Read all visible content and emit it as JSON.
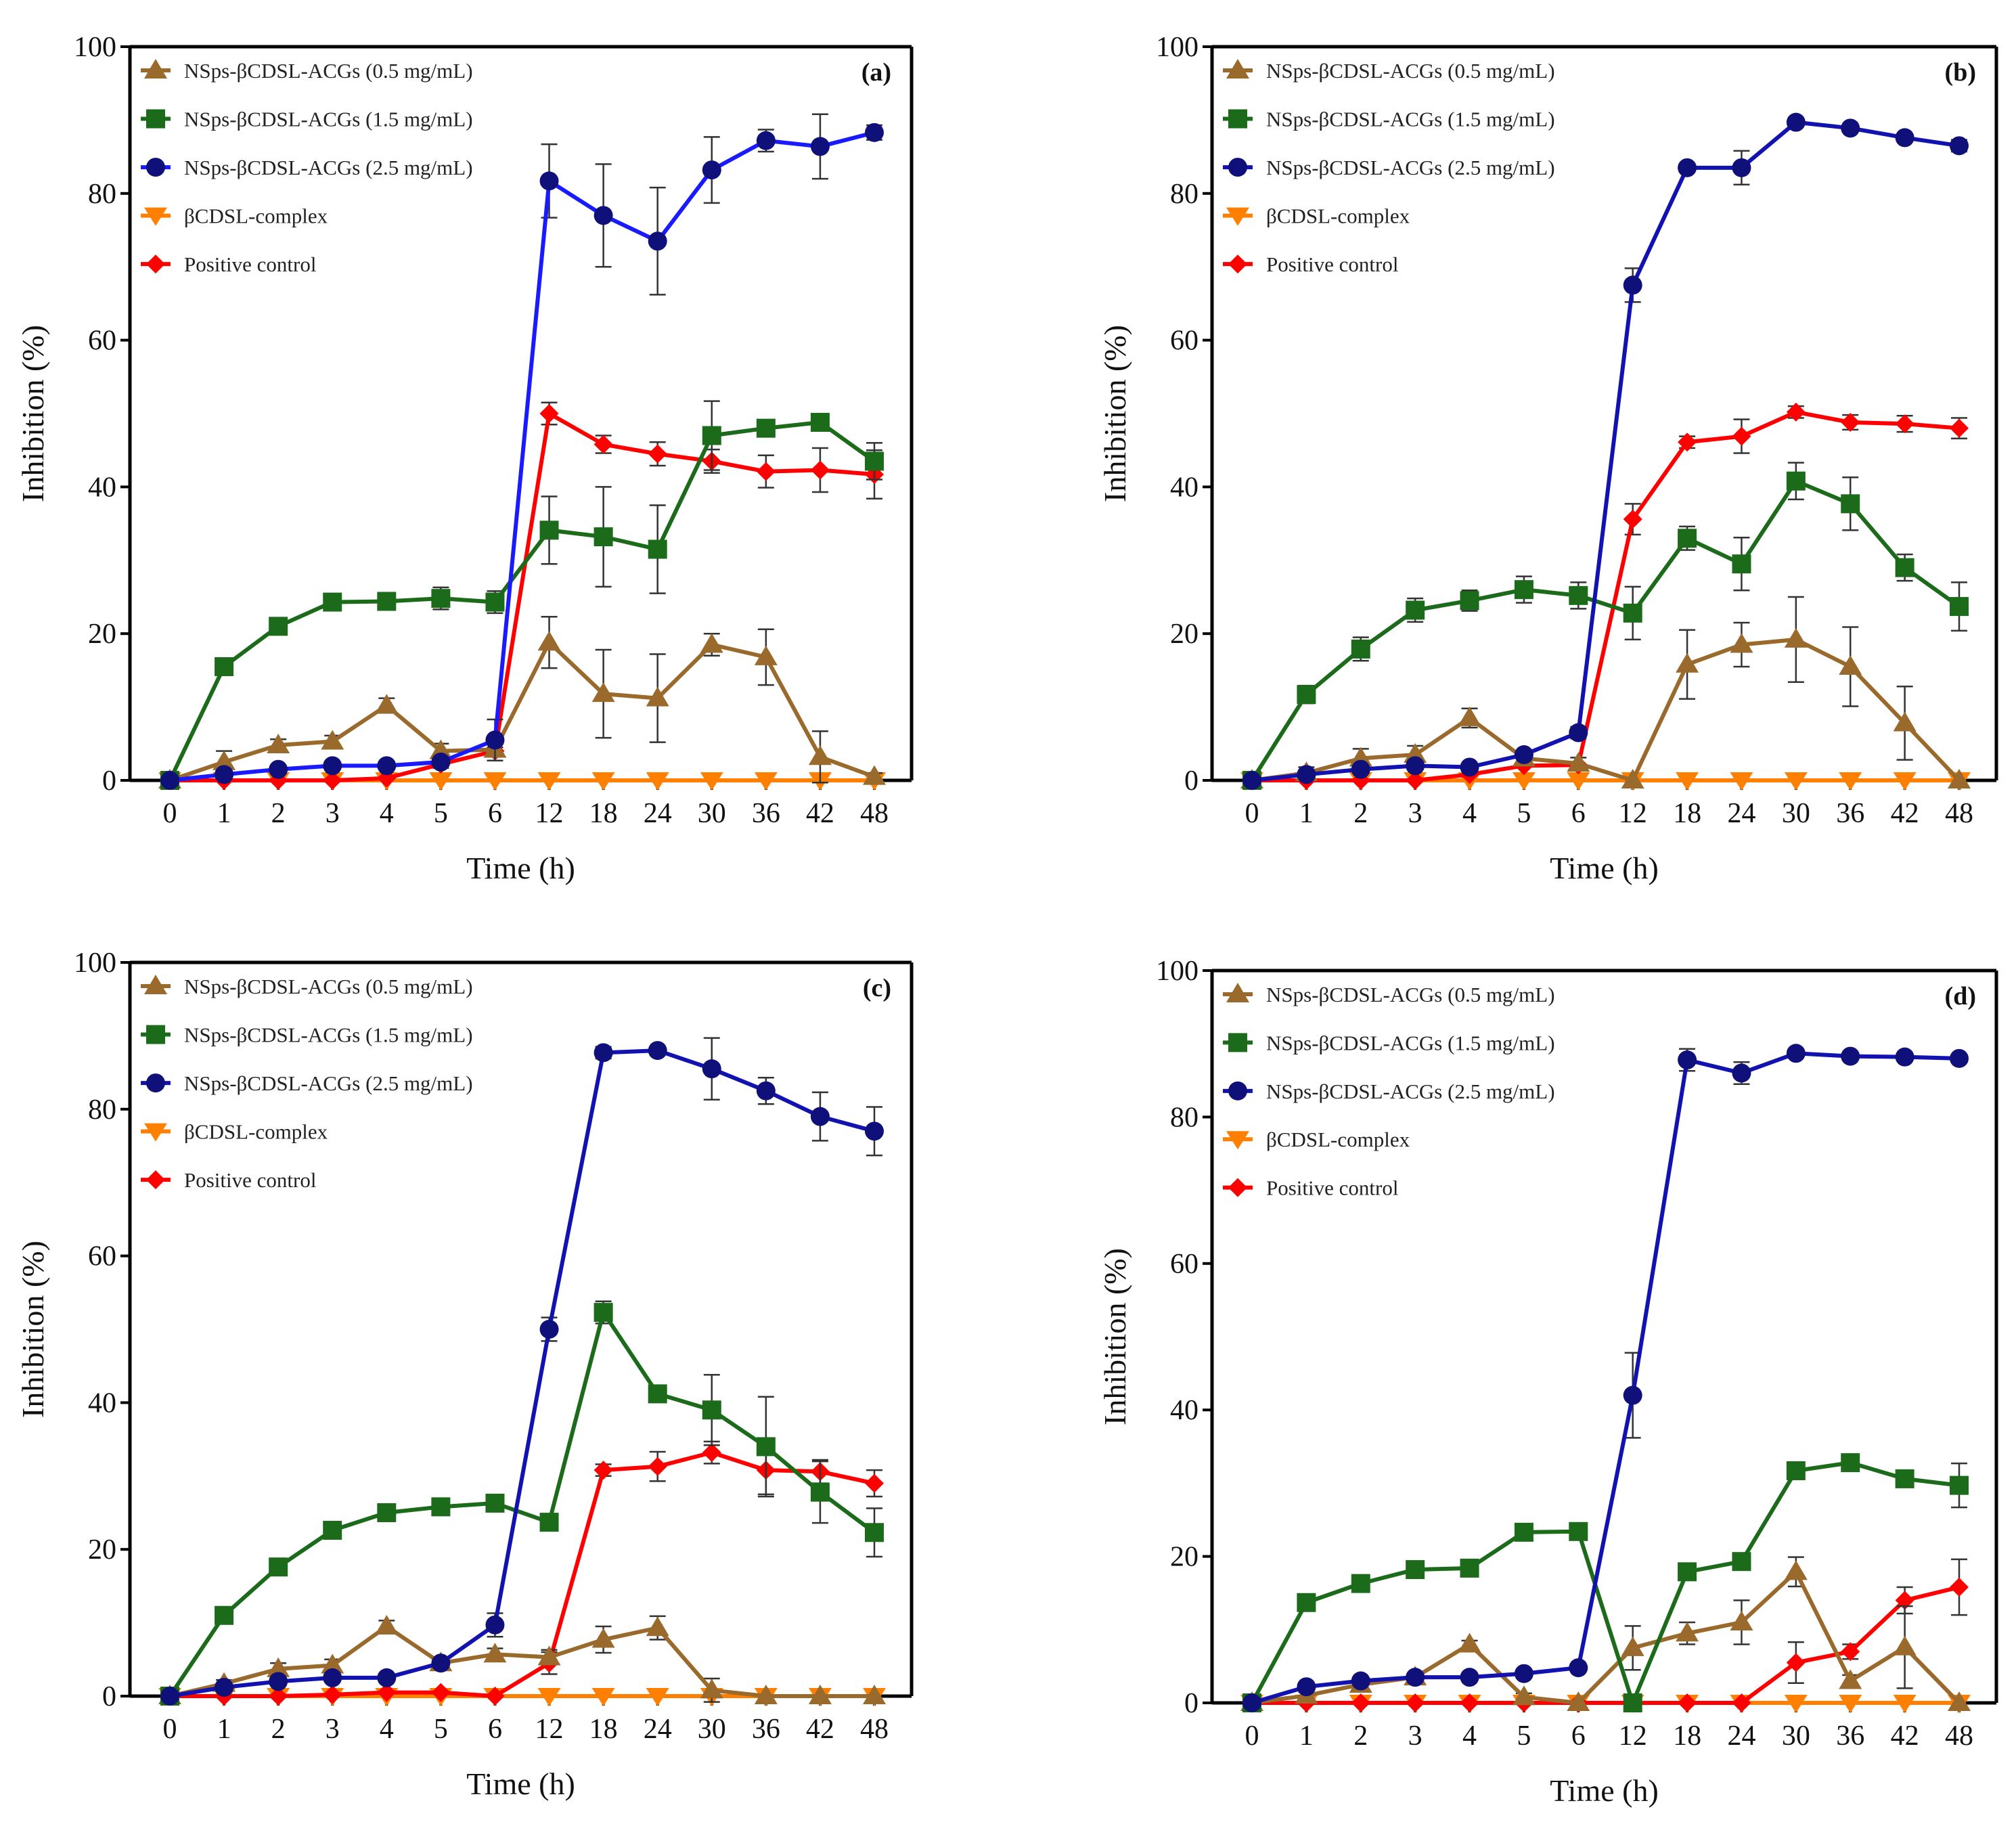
{
  "chart_data": [
    {
      "type": "line",
      "panel_label": "(a)",
      "xlabel": "Time (h)",
      "ylabel": "Inhibition (%)",
      "categories": [
        "0",
        "1",
        "2",
        "3",
        "4",
        "5",
        "6",
        "12",
        "18",
        "24",
        "30",
        "36",
        "42",
        "48"
      ],
      "ylim": [
        0,
        100
      ],
      "yticks": [
        0,
        20,
        40,
        60,
        80,
        100
      ],
      "legend_position": "top-left",
      "series": [
        {
          "name": "NSps-βCDSL-ACGs (0.5 mg/mL)",
          "marker": "triangle-up",
          "color": "#9a6a2c",
          "marker_color": "#9a6a2c",
          "values": [
            0,
            2.5,
            4.8,
            5.3,
            10.2,
            4.0,
            4.2,
            18.8,
            11.8,
            11.2,
            18.5,
            16.8,
            3.2,
            0.5
          ],
          "errors": [
            0,
            1.5,
            0.8,
            0.8,
            1.0,
            1.0,
            1.0,
            3.5,
            6.0,
            6.0,
            1.5,
            3.8,
            3.5,
            0.5
          ]
        },
        {
          "name": "NSps-βCDSL-ACGs (1.5 mg/mL)",
          "marker": "square",
          "color": "#1b6b1b",
          "marker_color": "#1b6b1b",
          "values": [
            0,
            15.5,
            21.0,
            24.3,
            24.4,
            24.8,
            24.3,
            34.1,
            33.2,
            31.5,
            47.0,
            48.0,
            48.8,
            43.5
          ],
          "errors": [
            0,
            0.5,
            0.5,
            0.5,
            0.5,
            1.5,
            1.5,
            4.6,
            6.8,
            6.0,
            4.7,
            0.8,
            0.8,
            2.5
          ]
        },
        {
          "name": "NSps-βCDSL-ACGs (2.5 mg/mL)",
          "marker": "circle",
          "color": "#1a1aff",
          "marker_color": "#10107a",
          "values": [
            0,
            0.8,
            1.5,
            2.0,
            2.0,
            2.5,
            5.5,
            81.7,
            77.0,
            73.5,
            83.2,
            87.2,
            86.4,
            88.3
          ],
          "errors": [
            0,
            0.3,
            0.3,
            0.3,
            0.3,
            0.5,
            2.8,
            5.0,
            7.0,
            7.3,
            4.5,
            1.5,
            4.4,
            1.0
          ]
        },
        {
          "name": "βCDSL-complex",
          "marker": "triangle-down",
          "color": "#ff8000",
          "marker_color": "#ff8000",
          "values": [
            0,
            0,
            0,
            0,
            0,
            0,
            0,
            0,
            0,
            0,
            0,
            0,
            0,
            0
          ],
          "errors": [
            0,
            0,
            0,
            0,
            0,
            0,
            0,
            0,
            0,
            0,
            0,
            0,
            0,
            0
          ]
        },
        {
          "name": "Positive control",
          "marker": "diamond",
          "color": "#ff0000",
          "marker_color": "#ff0000",
          "values": [
            0,
            0,
            0,
            0,
            0.3,
            2.2,
            4.0,
            50.0,
            45.8,
            44.5,
            43.5,
            42.1,
            42.3,
            41.7
          ],
          "errors": [
            0,
            0,
            0,
            0,
            0,
            0.5,
            0.5,
            1.5,
            1.2,
            1.6,
            1.6,
            2.2,
            3.0,
            3.3
          ]
        }
      ]
    },
    {
      "type": "line",
      "panel_label": "(b)",
      "xlabel": "Time (h)",
      "ylabel": "Inhibition (%)",
      "categories": [
        "0",
        "1",
        "2",
        "3",
        "4",
        "5",
        "6",
        "12",
        "18",
        "24",
        "30",
        "36",
        "42",
        "48"
      ],
      "ylim": [
        0,
        100
      ],
      "yticks": [
        0,
        20,
        40,
        60,
        80,
        100
      ],
      "legend_position": "top-left",
      "series": [
        {
          "name": "NSps-βCDSL-ACGs (0.5 mg/mL)",
          "marker": "triangle-up",
          "color": "#9a6a2c",
          "marker_color": "#9a6a2c",
          "values": [
            0,
            1.0,
            3.0,
            3.5,
            8.5,
            3.0,
            2.3,
            0,
            15.8,
            18.5,
            19.2,
            15.5,
            7.8,
            0
          ],
          "errors": [
            0,
            0.8,
            1.3,
            1.2,
            1.3,
            0.5,
            0.8,
            0,
            4.7,
            3.0,
            5.8,
            5.4,
            5.0,
            0
          ]
        },
        {
          "name": "NSps-βCDSL-ACGs (1.5 mg/mL)",
          "marker": "square",
          "color": "#1b6b1b",
          "marker_color": "#1b6b1b",
          "values": [
            0,
            11.7,
            17.9,
            23.2,
            24.5,
            26.0,
            25.2,
            22.8,
            33.0,
            29.5,
            40.8,
            37.7,
            29.0,
            23.7
          ],
          "errors": [
            0,
            1.2,
            1.6,
            1.6,
            1.4,
            1.8,
            1.8,
            3.6,
            1.6,
            3.6,
            2.5,
            3.6,
            1.8,
            3.3
          ]
        },
        {
          "name": "NSps-βCDSL-ACGs (2.5 mg/mL)",
          "marker": "circle",
          "color": "#1212b0",
          "marker_color": "#10107a",
          "values": [
            0,
            0.8,
            1.5,
            2.0,
            1.8,
            3.5,
            6.5,
            67.5,
            83.5,
            83.5,
            89.7,
            88.9,
            87.6,
            86.5
          ],
          "errors": [
            0,
            0.3,
            0.3,
            0.3,
            0.3,
            0.5,
            0.8,
            2.3,
            0.5,
            2.3,
            0.5,
            0.5,
            0.5,
            0.8
          ]
        },
        {
          "name": "βCDSL-complex",
          "marker": "triangle-down",
          "color": "#ff8000",
          "marker_color": "#ff8000",
          "values": [
            0,
            0,
            0,
            0,
            0,
            0,
            0,
            0,
            0,
            0,
            0,
            0,
            0,
            0
          ],
          "errors": [
            0,
            0,
            0,
            0,
            0,
            0,
            0,
            0,
            0,
            0,
            0,
            0,
            0,
            0
          ]
        },
        {
          "name": "Positive control",
          "marker": "diamond",
          "color": "#ff0000",
          "marker_color": "#ff0000",
          "values": [
            0,
            0,
            0,
            0,
            0.8,
            2.0,
            2.1,
            35.6,
            46.1,
            46.9,
            50.2,
            48.8,
            48.6,
            48.0
          ],
          "errors": [
            0,
            0,
            0,
            0,
            0,
            0,
            0,
            2.1,
            0.8,
            2.3,
            0.8,
            1.0,
            1.1,
            1.4
          ]
        }
      ]
    },
    {
      "type": "line",
      "panel_label": "(c)",
      "xlabel": "Time (h)",
      "ylabel": "Inhibition (%)",
      "categories": [
        "0",
        "1",
        "2",
        "3",
        "4",
        "5",
        "6",
        "12",
        "18",
        "24",
        "30",
        "36",
        "42",
        "48"
      ],
      "ylim": [
        0,
        100
      ],
      "yticks": [
        0,
        20,
        40,
        60,
        80,
        100
      ],
      "legend_position": "top-left",
      "series": [
        {
          "name": "NSps-βCDSL-ACGs (0.5 mg/mL)",
          "marker": "triangle-up",
          "color": "#9a6a2c",
          "marker_color": "#9a6a2c",
          "values": [
            0,
            1.7,
            3.7,
            4.2,
            9.5,
            4.5,
            5.7,
            5.3,
            7.7,
            9.3,
            0.8,
            0,
            0,
            0
          ],
          "errors": [
            0,
            0.5,
            0.8,
            0.8,
            0.8,
            0.8,
            0.8,
            1.0,
            1.8,
            1.6,
            1.6,
            0,
            0,
            0
          ]
        },
        {
          "name": "NSps-βCDSL-ACGs (1.5 mg/mL)",
          "marker": "square",
          "color": "#1b6b1b",
          "marker_color": "#1b6b1b",
          "values": [
            0,
            11.0,
            17.6,
            22.6,
            25.0,
            25.8,
            26.3,
            23.7,
            52.3,
            41.2,
            39.0,
            34.0,
            27.8,
            22.3
          ],
          "errors": [
            0,
            0.5,
            0.5,
            0.5,
            0.5,
            0.5,
            0.5,
            0.5,
            1.5,
            1.0,
            4.8,
            6.8,
            4.2,
            3.3
          ]
        },
        {
          "name": "NSps-βCDSL-ACGs (2.5 mg/mL)",
          "marker": "circle",
          "color": "#1212b0",
          "marker_color": "#10107a",
          "values": [
            0,
            1.2,
            2.0,
            2.5,
            2.5,
            4.5,
            9.7,
            50.0,
            87.7,
            88.0,
            85.5,
            82.5,
            79.0,
            77.0
          ],
          "errors": [
            0,
            0.5,
            0.5,
            0.5,
            0.5,
            0.5,
            1.6,
            1.6,
            0.8,
            0.5,
            4.2,
            1.8,
            3.3,
            3.3
          ]
        },
        {
          "name": "βCDSL-complex",
          "marker": "triangle-down",
          "color": "#ff8000",
          "marker_color": "#ff8000",
          "values": [
            0,
            0,
            0,
            0,
            0,
            0,
            0,
            0,
            0,
            0,
            0,
            0,
            0,
            0
          ],
          "errors": [
            0,
            0,
            0,
            0,
            0,
            0,
            0,
            0,
            0,
            0,
            0,
            0,
            0,
            0
          ]
        },
        {
          "name": "Positive control",
          "marker": "diamond",
          "color": "#ff0000",
          "marker_color": "#ff0000",
          "values": [
            0,
            0,
            0,
            0.2,
            0.5,
            0.5,
            0,
            4.5,
            30.8,
            31.3,
            33.2,
            30.8,
            30.6,
            29.0
          ],
          "errors": [
            0,
            0,
            0,
            0,
            0,
            0,
            0,
            1.5,
            0.8,
            2.0,
            1.5,
            3.3,
            1.6,
            1.8
          ]
        }
      ]
    },
    {
      "type": "line",
      "panel_label": "(d)",
      "xlabel": "Time (h)",
      "ylabel": "Inhibition (%)",
      "categories": [
        "0",
        "1",
        "2",
        "3",
        "4",
        "5",
        "6",
        "12",
        "18",
        "24",
        "30",
        "36",
        "42",
        "48"
      ],
      "ylim": [
        0,
        100
      ],
      "yticks": [
        0,
        20,
        40,
        60,
        80,
        100
      ],
      "legend_position": "top-left",
      "series": [
        {
          "name": "NSps-βCDSL-ACGs (0.5 mg/mL)",
          "marker": "triangle-up",
          "color": "#9a6a2c",
          "marker_color": "#9a6a2c",
          "values": [
            0,
            1.0,
            2.5,
            3.5,
            8.0,
            0.8,
            0,
            7.5,
            9.5,
            11.0,
            17.9,
            3.0,
            7.6,
            0
          ],
          "errors": [
            0,
            0.5,
            0.5,
            0.5,
            0.5,
            0.5,
            0,
            3.0,
            1.5,
            3.0,
            2.0,
            0.8,
            5.6,
            0
          ]
        },
        {
          "name": "NSps-βCDSL-ACGs (1.5 mg/mL)",
          "marker": "square",
          "color": "#1b6b1b",
          "marker_color": "#1b6b1b",
          "values": [
            0,
            13.7,
            16.3,
            18.2,
            18.4,
            23.3,
            23.4,
            0,
            17.9,
            19.3,
            31.7,
            32.8,
            30.6,
            29.7
          ],
          "errors": [
            0,
            1.0,
            0.6,
            0.8,
            0.6,
            0.6,
            0.6,
            0,
            0.8,
            0.6,
            0.6,
            0.8,
            0.6,
            3.0
          ]
        },
        {
          "name": "NSps-βCDSL-ACGs (2.5 mg/mL)",
          "marker": "circle",
          "color": "#1212b0",
          "marker_color": "#10107a",
          "values": [
            0,
            2.2,
            3.0,
            3.5,
            3.5,
            4.0,
            4.8,
            42.0,
            87.8,
            86.0,
            88.7,
            88.3,
            88.2,
            88.0
          ],
          "errors": [
            0,
            0.3,
            0.3,
            0.3,
            0.3,
            0.3,
            0.5,
            5.8,
            1.5,
            1.5,
            0.5,
            0.5,
            0.5,
            0.5
          ]
        },
        {
          "name": "βCDSL-complex",
          "marker": "triangle-down",
          "color": "#ff8000",
          "marker_color": "#ff8000",
          "values": [
            0,
            0,
            0,
            0,
            0,
            0,
            0,
            0,
            0,
            0,
            0,
            0,
            0,
            0
          ],
          "errors": [
            0,
            0,
            0,
            0,
            0,
            0,
            0,
            0,
            0,
            0,
            0,
            0,
            0,
            0
          ]
        },
        {
          "name": "Positive control",
          "marker": "diamond",
          "color": "#ff0000",
          "marker_color": "#ff0000",
          "values": [
            0,
            0,
            0,
            0,
            0,
            0,
            0,
            0,
            0,
            0,
            5.5,
            7.0,
            14.0,
            15.8
          ],
          "errors": [
            0,
            0,
            0,
            0,
            0,
            0,
            0,
            0,
            0,
            0,
            2.8,
            1.0,
            1.8,
            3.8
          ]
        }
      ]
    }
  ]
}
